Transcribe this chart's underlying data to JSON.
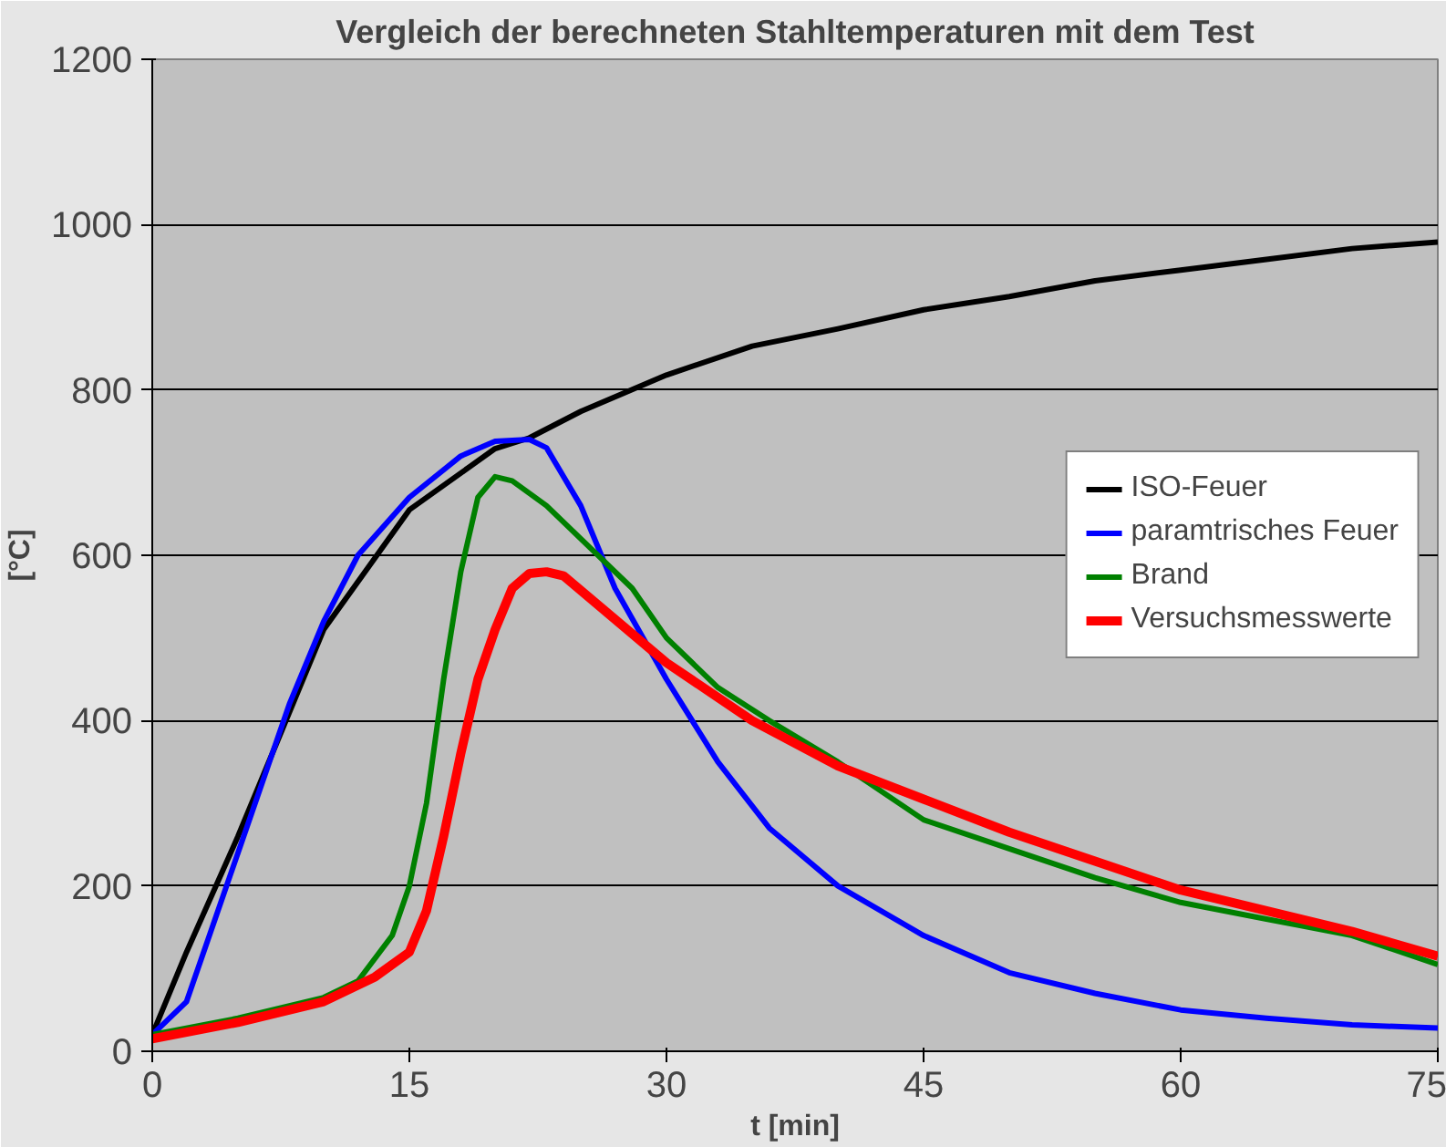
{
  "chart_data": {
    "type": "line",
    "title": "Vergleich der berechneten Stahltemperaturen mit dem Test",
    "xlabel": "t [min]",
    "ylabel": "[°C]",
    "xlim": [
      0,
      75
    ],
    "xticks": [
      0,
      15,
      30,
      45,
      60,
      75
    ],
    "ylim": [
      0,
      1200
    ],
    "yticks": [
      0,
      200,
      400,
      600,
      800,
      1000,
      1200
    ],
    "grid": "y",
    "legend": "right",
    "marker": "none",
    "line_style": "solid",
    "series": [
      {
        "name": "ISO-Feuer",
        "color": "#000000",
        "x": [
          0,
          2,
          5,
          10,
          15,
          20,
          22,
          25,
          30,
          35,
          40,
          45,
          50,
          55,
          60,
          65,
          70,
          75
        ],
        "values": [
          20,
          120,
          260,
          510,
          655,
          729,
          742,
          774,
          818,
          853,
          874,
          897,
          913,
          932,
          945,
          958,
          971,
          979
        ]
      },
      {
        "name": "paramtrisches Feuer",
        "color": "#0000ff",
        "x": [
          0,
          2,
          5,
          8,
          10,
          12,
          15,
          18,
          20,
          22,
          23,
          25,
          27,
          30,
          33,
          36,
          40,
          45,
          50,
          55,
          60,
          65,
          70,
          75
        ],
        "values": [
          20,
          60,
          240,
          420,
          520,
          600,
          670,
          720,
          738,
          740,
          730,
          660,
          560,
          450,
          350,
          270,
          200,
          140,
          95,
          70,
          50,
          40,
          32,
          28
        ]
      },
      {
        "name": "Brand",
        "color": "#008000",
        "x": [
          0,
          5,
          10,
          12,
          14,
          15,
          16,
          17,
          18,
          19,
          20,
          21,
          23,
          25,
          28,
          30,
          33,
          36,
          40,
          45,
          50,
          55,
          60,
          65,
          70,
          75
        ],
        "values": [
          20,
          40,
          65,
          85,
          140,
          200,
          300,
          450,
          580,
          670,
          695,
          690,
          660,
          620,
          560,
          500,
          440,
          400,
          350,
          280,
          245,
          210,
          180,
          160,
          140,
          105
        ]
      },
      {
        "name": "Versuchsmesswerte",
        "color": "#ff0000",
        "x": [
          0,
          5,
          10,
          13,
          15,
          16,
          17,
          18,
          19,
          20,
          21,
          22,
          23,
          24,
          26,
          30,
          35,
          40,
          45,
          50,
          55,
          60,
          65,
          70,
          75
        ],
        "values": [
          15,
          35,
          60,
          90,
          120,
          170,
          260,
          360,
          450,
          510,
          560,
          578,
          580,
          575,
          540,
          470,
          400,
          345,
          305,
          265,
          230,
          195,
          170,
          145,
          115
        ]
      }
    ]
  }
}
